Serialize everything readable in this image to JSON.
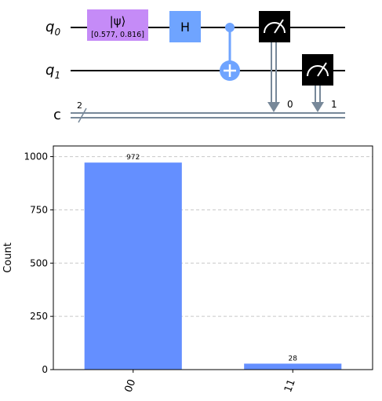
{
  "circuit": {
    "qubits": [
      {
        "name": "q",
        "index": "0"
      },
      {
        "name": "q",
        "index": "1"
      }
    ],
    "classical": {
      "name": "c",
      "width": "2"
    },
    "gates": {
      "initialize": {
        "label": "|ψ⟩",
        "params": "[0.577, 0.816]",
        "color": "#C58BF7"
      },
      "hadamard": {
        "label": "H",
        "color": "#6FA4FF"
      },
      "cnot": {
        "color": "#6FA4FF"
      },
      "measure": {
        "color": "#000000"
      }
    },
    "measure_targets": [
      "0",
      "1"
    ]
  },
  "chart_data": {
    "type": "bar",
    "categories": [
      "00",
      "11"
    ],
    "values": [
      972,
      28
    ],
    "value_labels": [
      "972",
      "28"
    ],
    "ylabel": "Count",
    "ylim": [
      0,
      1050
    ],
    "yticks": [
      0,
      250,
      500,
      750,
      1000
    ],
    "grid": "horizontal-dashed",
    "bar_color": "#648FFF"
  }
}
